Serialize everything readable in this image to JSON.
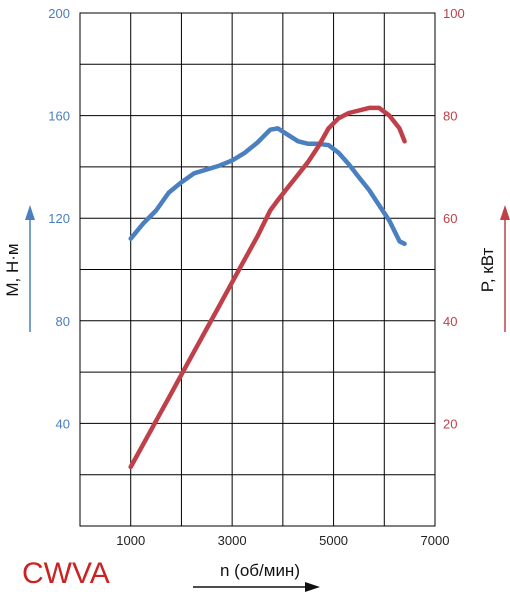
{
  "chart_data": {
    "type": "line",
    "brand": "CWVA",
    "xlabel": "n (об/мин)",
    "ylabel_left": "M, Н·м",
    "ylabel_right": "P, кВт",
    "xlim": [
      0,
      7000
    ],
    "ylim_left": [
      0,
      200
    ],
    "ylim_right": [
      0,
      100
    ],
    "x_ticks": [
      1000,
      3000,
      5000,
      7000
    ],
    "y_left_ticks": [
      40,
      80,
      120,
      160,
      200
    ],
    "y_right_ticks": [
      20,
      40,
      60,
      80,
      100
    ],
    "grid": true,
    "colors": {
      "torque": "#4a7fc0",
      "power": "#c0404a",
      "grid": "#000000"
    },
    "series": [
      {
        "axis": "left",
        "x": [
          1000,
          1250,
          1500,
          1750,
          2000,
          2250,
          2500,
          2750,
          3000,
          3250,
          3500,
          3750,
          3900,
          4100,
          4300,
          4500,
          4700,
          4900,
          5100,
          5300,
          5500,
          5700,
          5900,
          6100,
          6300,
          6400
        ],
        "values": [
          112,
          118,
          123,
          130,
          134,
          137.5,
          139,
          140.5,
          142.5,
          145.5,
          149.5,
          154.5,
          155,
          152.5,
          150,
          149,
          149,
          148.5,
          145.5,
          141,
          136,
          131,
          125,
          119,
          111,
          110
        ]
      },
      {
        "axis": "right",
        "x": [
          1000,
          1250,
          1500,
          1750,
          2000,
          2250,
          2500,
          2750,
          3000,
          3250,
          3500,
          3750,
          3900,
          4100,
          4300,
          4500,
          4700,
          4900,
          5100,
          5300,
          5500,
          5700,
          5900,
          6100,
          6300,
          6400
        ],
        "values": [
          11.5,
          16,
          20.5,
          25,
          29.5,
          34,
          38.5,
          43,
          47.5,
          52,
          56.5,
          61.5,
          63.5,
          66,
          68.5,
          71,
          74,
          77.5,
          79.5,
          80.5,
          81,
          81.5,
          81.5,
          80,
          77.5,
          75
        ]
      }
    ]
  }
}
